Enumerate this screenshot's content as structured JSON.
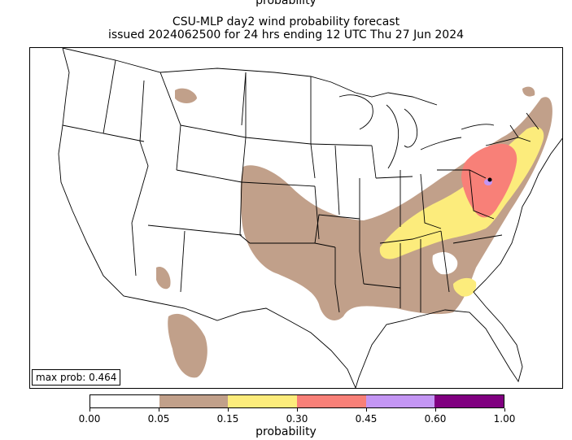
{
  "header": {
    "cut_label": "probability",
    "title_line1": "CSU-MLP day2 wind probability forecast",
    "title_line2": "issued 2024062500 for 24 hrs ending 12 UTC Thu 27 Jun 2024"
  },
  "map": {
    "max_prob_label": "max prob: 0.464"
  },
  "colorbar": {
    "label": "probability",
    "bins": [
      {
        "lower": 0.0,
        "upper": 0.05,
        "color": "#ffffff"
      },
      {
        "lower": 0.05,
        "upper": 0.15,
        "color": "#c1a08a"
      },
      {
        "lower": 0.15,
        "upper": 0.3,
        "color": "#fcec7c"
      },
      {
        "lower": 0.3,
        "upper": 0.45,
        "color": "#f88078"
      },
      {
        "lower": 0.45,
        "upper": 0.6,
        "color": "#c496f4"
      },
      {
        "lower": 0.6,
        "upper": 1.0,
        "color": "#800080"
      }
    ],
    "ticks": [
      "0.00",
      "0.05",
      "0.15",
      "0.30",
      "0.45",
      "0.60",
      "1.00"
    ]
  }
}
